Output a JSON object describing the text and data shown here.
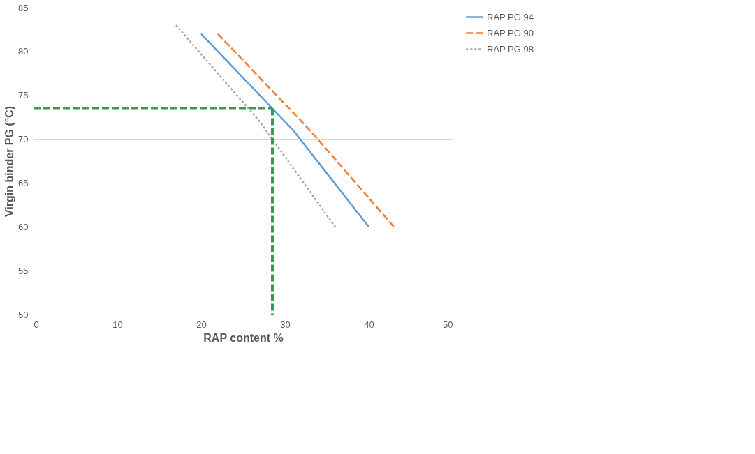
{
  "chart_data": {
    "type": "line",
    "xlabel": "RAP content %",
    "ylabel": "Virgin binder PG (°C)",
    "xlim": [
      0,
      50
    ],
    "xticks": [
      0,
      10,
      20,
      30,
      40,
      50
    ],
    "ylim": [
      50,
      85
    ],
    "yticks": [
      50,
      55,
      60,
      65,
      70,
      75,
      80,
      85
    ],
    "grid": "y",
    "legend": "right",
    "series": [
      {
        "name": "RAP PG 94",
        "color": "#5b9bd5",
        "line_style": "solid",
        "x": [
          20,
          31,
          40
        ],
        "values": [
          82,
          71,
          60
        ]
      },
      {
        "name": "RAP PG 90",
        "color": "#ed7d31",
        "line_style": "dashed",
        "x": [
          22,
          33,
          43
        ],
        "values": [
          82,
          71,
          60
        ]
      },
      {
        "name": "RAP PG 98",
        "color": "#a5a5a5",
        "line_style": "dotted",
        "x": [
          17,
          27,
          36
        ],
        "values": [
          83,
          72,
          60
        ]
      },
      {
        "color": "#2e9e55",
        "line_style": "dashed",
        "x": [
          0,
          28.5
        ],
        "values": [
          73.5,
          73.5
        ]
      },
      {
        "color": "#2e9e55",
        "line_style": "dashed",
        "x": [
          28.5,
          28.5
        ],
        "values": [
          73.5,
          50
        ]
      }
    ]
  }
}
